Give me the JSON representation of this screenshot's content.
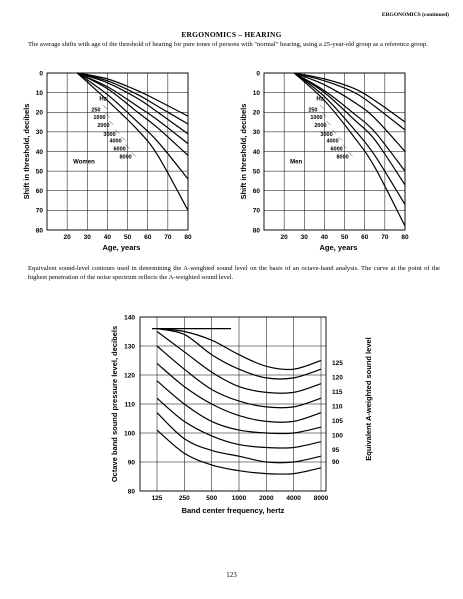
{
  "running_head": "ERGONOMICS (continued)",
  "title": "ERGONOMICS – HEARING",
  "intro_paragraph": "The average shifts with age of the threshold of hearing for pure tones of persons with \"normal\" hearing, using a 25-year-old group as a reference group.",
  "second_paragraph": "Equivalent sound-level contours used in determining the A-weighted sound level on the basis of an octave-band analysis. The curve at the point of the highest penetration of the noise spectrum reflects the A-weighted sound level.",
  "page_number": "123",
  "chart_data": [
    {
      "type": "line",
      "panel_label": "Women",
      "legend_title": "Hz",
      "xlabel": "Age, years",
      "ylabel": "Shift in threshold, decibels",
      "x_ticks": [
        "20",
        "30",
        "40",
        "50",
        "60",
        "70",
        "80"
      ],
      "y_ticks": [
        "0",
        "10",
        "20",
        "30",
        "40",
        "50",
        "60",
        "70",
        "80"
      ],
      "xlim": [
        10,
        80
      ],
      "ylim": [
        80,
        0
      ],
      "grid": true,
      "x": [
        25,
        40,
        55,
        65,
        80
      ],
      "series": [
        {
          "name": "250",
          "values": [
            0,
            3,
            9,
            14,
            22
          ]
        },
        {
          "name": "1000",
          "values": [
            0,
            4,
            11,
            17,
            26
          ]
        },
        {
          "name": "2000",
          "values": [
            0,
            5,
            13,
            20,
            31
          ]
        },
        {
          "name": "3000",
          "values": [
            0,
            7,
            17,
            24,
            36
          ]
        },
        {
          "name": "4000",
          "values": [
            0,
            8,
            20,
            28,
            42
          ]
        },
        {
          "name": "6000",
          "values": [
            0,
            11,
            25,
            35,
            54
          ]
        },
        {
          "name": "8000",
          "values": [
            0,
            14,
            29,
            42,
            70
          ]
        }
      ]
    },
    {
      "type": "line",
      "panel_label": "Men",
      "legend_title": "Hz",
      "xlabel": "Age, years",
      "ylabel": "Shift in threshold, decibels",
      "x_ticks": [
        "20",
        "30",
        "40",
        "50",
        "60",
        "70",
        "80"
      ],
      "y_ticks": [
        "0",
        "10",
        "20",
        "30",
        "40",
        "50",
        "60",
        "70",
        "80"
      ],
      "xlim": [
        10,
        80
      ],
      "ylim": [
        80,
        0
      ],
      "grid": true,
      "x": [
        25,
        40,
        55,
        65,
        80
      ],
      "series": [
        {
          "name": "250",
          "values": [
            0,
            3,
            8,
            14,
            25
          ]
        },
        {
          "name": "1000",
          "values": [
            0,
            4,
            10,
            17,
            29
          ]
        },
        {
          "name": "2000",
          "values": [
            0,
            6,
            15,
            23,
            40
          ]
        },
        {
          "name": "3000",
          "values": [
            0,
            9,
            21,
            30,
            50
          ]
        },
        {
          "name": "4000",
          "values": [
            0,
            10,
            24,
            34,
            57
          ]
        },
        {
          "name": "6000",
          "values": [
            0,
            12,
            29,
            42,
            67
          ]
        },
        {
          "name": "8000",
          "values": [
            0,
            14,
            33,
            48,
            78
          ]
        }
      ]
    },
    {
      "type": "line",
      "xlabel": "Band center frequency, hertz",
      "ylabel": "Octave band sound pressure level, decibels",
      "right_ylabel": "Equivalent A-weighted sound level",
      "categories": [
        "125",
        "250",
        "500",
        "1000",
        "2000",
        "4000",
        "8000"
      ],
      "y_ticks": [
        "80",
        "90",
        "100",
        "110",
        "120",
        "130",
        "140"
      ],
      "ylim": [
        80,
        140
      ],
      "grid": true,
      "series": [
        {
          "name": "90",
          "values": [
            101,
            93,
            89,
            87,
            86,
            86,
            88
          ]
        },
        {
          "name": "95",
          "values": [
            107,
            98,
            94,
            92,
            90,
            90,
            92
          ]
        },
        {
          "name": "100",
          "values": [
            112,
            104,
            99,
            96,
            95,
            95,
            97
          ]
        },
        {
          "name": "105",
          "values": [
            118,
            110,
            104,
            101,
            100,
            100,
            102
          ]
        },
        {
          "name": "110",
          "values": [
            124,
            116,
            110,
            106,
            104,
            104,
            107
          ]
        },
        {
          "name": "115",
          "values": [
            130,
            122,
            115,
            111,
            109,
            109,
            112
          ]
        },
        {
          "name": "120",
          "values": [
            135,
            128,
            121,
            116,
            114,
            114,
            117
          ]
        },
        {
          "name": "125",
          "values": [
            140,
            134,
            127,
            122,
            119,
            119,
            122
          ]
        },
        {
          "name": "",
          "values": [
            136,
            135,
            132,
            127,
            123,
            122,
            125
          ]
        }
      ]
    }
  ]
}
